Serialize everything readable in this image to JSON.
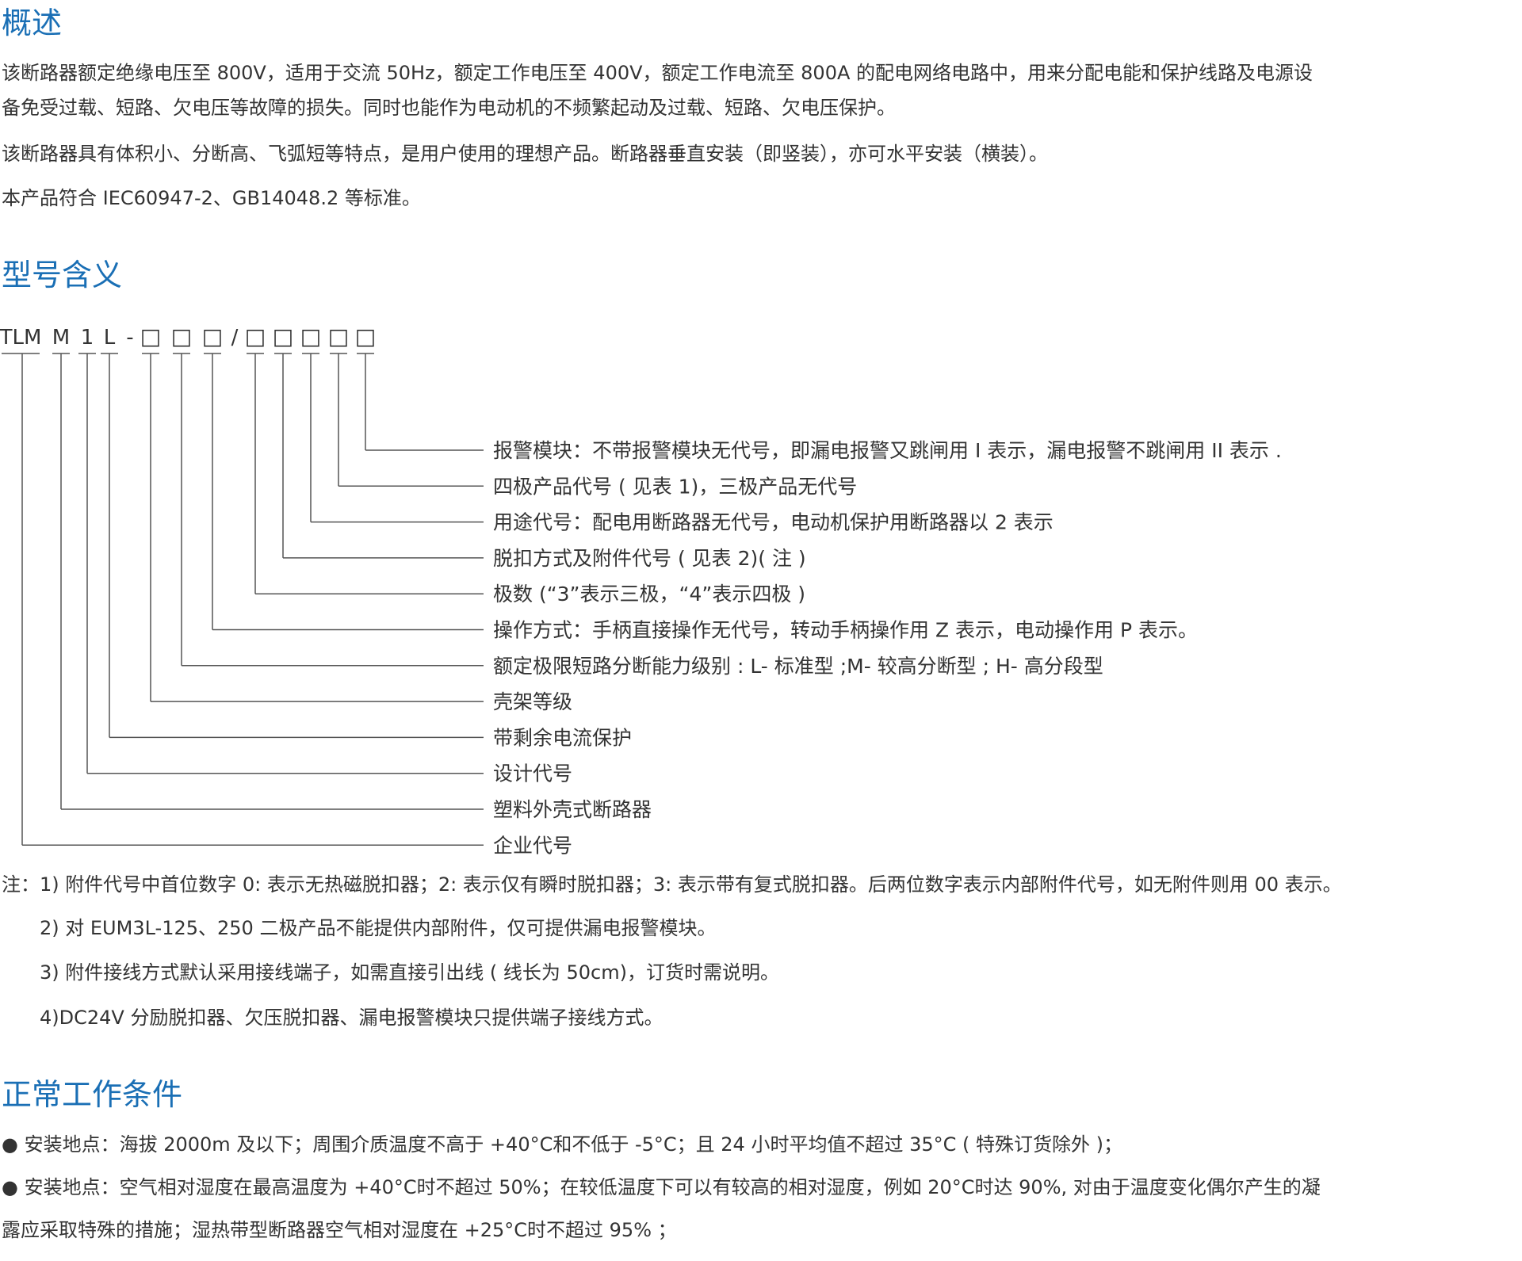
{
  "overview": {
    "title": "概述",
    "paragraphs": [
      "该断路器额定绝缘电压至 800V，适用于交流 50Hz，额定工作电压至 400V，额定工作电流至 800A 的配电网络电路中，用来分配电能和保护线路及电源设",
      "备免受过载、短路、欠电压等故障的损失。同时也能作为电动机的不频繁起动及过载、短路、欠电压保护。",
      "该断路器具有体积小、分断高、飞弧短等特点，是用户使用的理想产品。断路器垂直安装（即竖装），亦可水平安装（横装）。",
      "本产品符合 IEC60947-2、GB14048.2 等标准。"
    ]
  },
  "model": {
    "title": "型号含义",
    "code_parts": [
      "TLM",
      "M",
      "1",
      "L",
      "-",
      "□",
      "□",
      "□",
      "/",
      "□",
      "□",
      "□",
      "□",
      "□"
    ],
    "descriptions": [
      "报警模块：不带报警模块无代号，即漏电报警又跳闸用 I 表示，漏电报警不跳闸用 II 表示 .",
      "四极产品代号 ( 见表 1)，三极产品无代号",
      "用途代号：配电用断路器无代号，电动机保护用断路器以 2 表示",
      "脱扣方式及附件代号 ( 见表 2)( 注 )",
      "极数 (“3”表示三极，“4”表示四极 )",
      "操作方式：手柄直接操作无代号，转动手柄操作用 Z 表示，电动操作用 P 表示。",
      "额定极限短路分断能力级别 : L- 标准型 ;M- 较高分断型 ; H- 高分段型",
      "壳架等级",
      "带剩余电流保护",
      "设计代号",
      "塑料外壳式断路器",
      "企业代号"
    ],
    "notes": [
      "注：1) 附件代号中首位数字 0: 表示无热磁脱扣器；2: 表示仅有瞬时脱扣器；3: 表示带有复式脱扣器。后两位数字表示内部附件代号，如无附件则用 00 表示。",
      "2) 对 EUM3L-125、250 二极产品不能提供内部附件，仅可提供漏电报警模块。",
      "3) 附件接线方式默认采用接线端子，如需直接引出线 ( 线长为 50cm)，订货时需说明。",
      "4)DC24V 分励脱扣器、欠压脱扣器、漏电报警模块只提供端子接线方式。"
    ]
  },
  "conditions": {
    "title": "正常工作条件",
    "bullet": "●",
    "items": [
      "安装地点：海拔 2000m 及以下；周围介质温度不高于 +40°C和不低于 -5°C；且 24 小时平均值不超过 35°C ( 特殊订货除外 )；",
      "安装地点：空气相对湿度在最高温度为 +40°C时不超过 50%；在较低温度下可以有较高的相对湿度，例如 20°C时达 90%, 对由于温度变化偶尔产生的凝"
    ],
    "continuation": "露应采取特殊的措施；湿热带型断路器空气相对湿度在 +25°C时不超过 95% ；"
  }
}
